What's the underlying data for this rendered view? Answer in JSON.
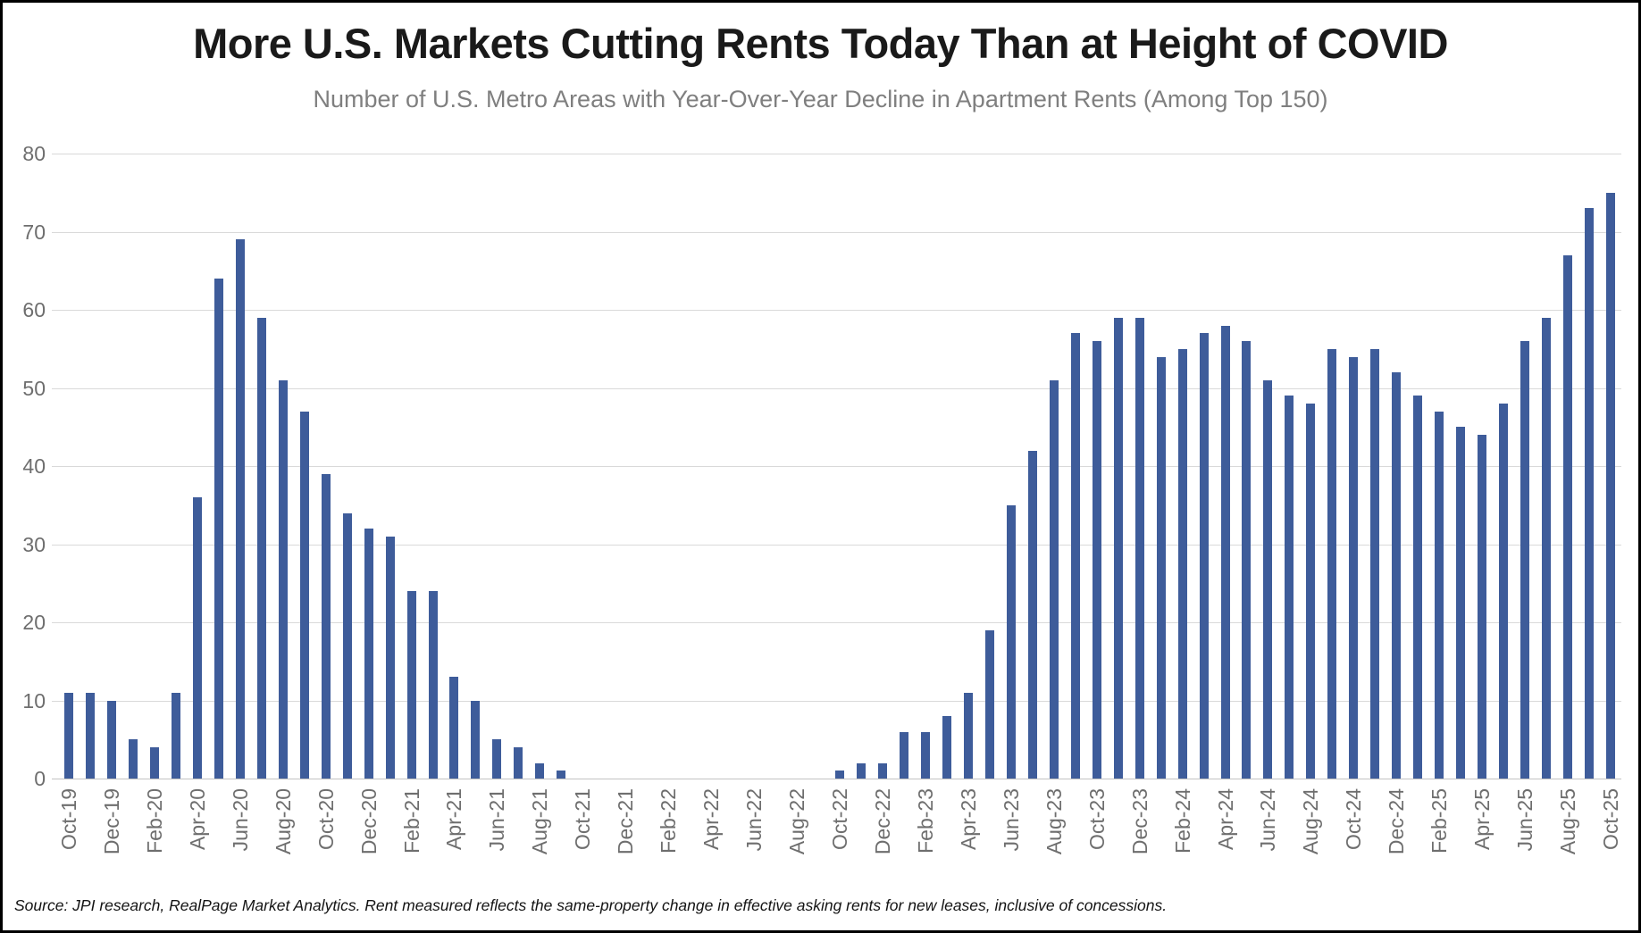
{
  "header": {
    "title": "More U.S. Markets Cutting Rents Today Than at Height of COVID",
    "subtitle": "Number of U.S. Metro Areas with Year-Over-Year Decline in Apartment Rents (Among Top 150)"
  },
  "footer": {
    "source_note": "Source: JPI research, RealPage Market Analytics. Rent measured reflects the same-property change in effective asking rents for new leases, inclusive of concessions."
  },
  "colors": {
    "bar": "#3e5c9a",
    "gridline": "#d9d9d9",
    "zero_line": "#c2c2c2",
    "axis_text": "#6e6e6e",
    "title_text": "#1a1a1a",
    "subtitle_text": "#7f7f7f",
    "border": "#000000",
    "background": "#ffffff"
  },
  "chart_data": {
    "type": "bar",
    "title": "More U.S. Markets Cutting Rents Today Than at Height of COVID",
    "subtitle": "Number of U.S. Metro Areas with Year-Over-Year Decline in Apartment Rents (Among Top 150)",
    "xlabel": "",
    "ylabel": "",
    "ylim": [
      0,
      80
    ],
    "y_ticks": [
      0,
      10,
      20,
      30,
      40,
      50,
      60,
      70,
      80
    ],
    "grid": "horizontal",
    "legend": "none",
    "x_tick_every": 2,
    "x": [
      "Oct-19",
      "Nov-19",
      "Dec-19",
      "Jan-20",
      "Feb-20",
      "Mar-20",
      "Apr-20",
      "May-20",
      "Jun-20",
      "Jul-20",
      "Aug-20",
      "Sep-20",
      "Oct-20",
      "Nov-20",
      "Dec-20",
      "Jan-21",
      "Feb-21",
      "Mar-21",
      "Apr-21",
      "May-21",
      "Jun-21",
      "Jul-21",
      "Aug-21",
      "Sep-21",
      "Oct-21",
      "Nov-21",
      "Dec-21",
      "Jan-22",
      "Feb-22",
      "Mar-22",
      "Apr-22",
      "May-22",
      "Jun-22",
      "Jul-22",
      "Aug-22",
      "Sep-22",
      "Oct-22",
      "Nov-22",
      "Dec-22",
      "Jan-23",
      "Feb-23",
      "Mar-23",
      "Apr-23",
      "May-23",
      "Jun-23",
      "Jul-23",
      "Aug-23",
      "Sep-23",
      "Oct-23",
      "Nov-23",
      "Dec-23",
      "Jan-24",
      "Feb-24",
      "Mar-24",
      "Apr-24",
      "May-24",
      "Jun-24",
      "Jul-24",
      "Aug-24",
      "Sep-24",
      "Oct-24",
      "Nov-24",
      "Dec-24",
      "Jan-25",
      "Feb-25",
      "Mar-25",
      "Apr-25",
      "May-25",
      "Jun-25",
      "Jul-25",
      "Aug-25",
      "Sep-25",
      "Oct-25"
    ],
    "values": [
      11,
      11,
      10,
      5,
      4,
      11,
      36,
      64,
      69,
      59,
      51,
      47,
      39,
      34,
      32,
      31,
      24,
      24,
      13,
      10,
      5,
      4,
      2,
      1,
      0,
      0,
      0,
      0,
      0,
      0,
      0,
      0,
      0,
      0,
      0,
      0,
      1,
      2,
      2,
      6,
      6,
      8,
      11,
      19,
      35,
      42,
      51,
      57,
      56,
      59,
      59,
      54,
      55,
      57,
      58,
      56,
      51,
      49,
      48,
      55,
      54,
      55,
      52,
      49,
      47,
      45,
      44,
      48,
      56,
      59,
      67,
      73,
      75
    ]
  }
}
